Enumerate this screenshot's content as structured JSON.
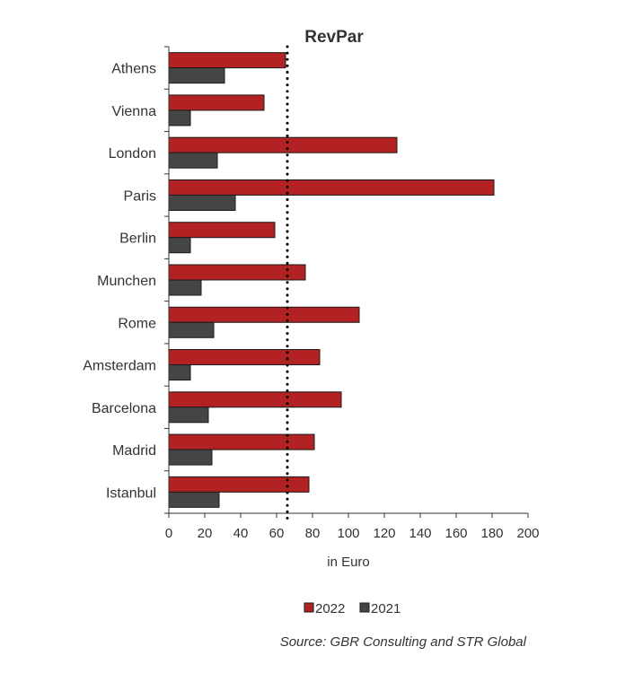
{
  "chart_data": {
    "type": "bar",
    "orientation": "horizontal",
    "title": "RevPar",
    "xlabel": "in Euro",
    "ylabel": "",
    "xlim": [
      0,
      200
    ],
    "xticks": [
      0,
      20,
      40,
      60,
      80,
      100,
      120,
      140,
      160,
      180,
      200
    ],
    "categories": [
      "Athens",
      "Vienna",
      "London",
      "Paris",
      "Berlin",
      "Munchen",
      "Rome",
      "Amsterdam",
      "Barcelona",
      "Madrid",
      "Istanbul"
    ],
    "series": [
      {
        "name": "2022",
        "color": "#b22222",
        "values": [
          65,
          53,
          127,
          181,
          59,
          76,
          106,
          84,
          96,
          81,
          78
        ]
      },
      {
        "name": "2021",
        "color": "#454545",
        "values": [
          31,
          12,
          27,
          37,
          12,
          18,
          25,
          12,
          22,
          24,
          28
        ]
      }
    ],
    "reference_line": {
      "value": 66,
      "style": "dotted"
    },
    "legend_position": "bottom-center",
    "grid": false
  },
  "source_text": "Source: GBR Consulting and STR Global"
}
